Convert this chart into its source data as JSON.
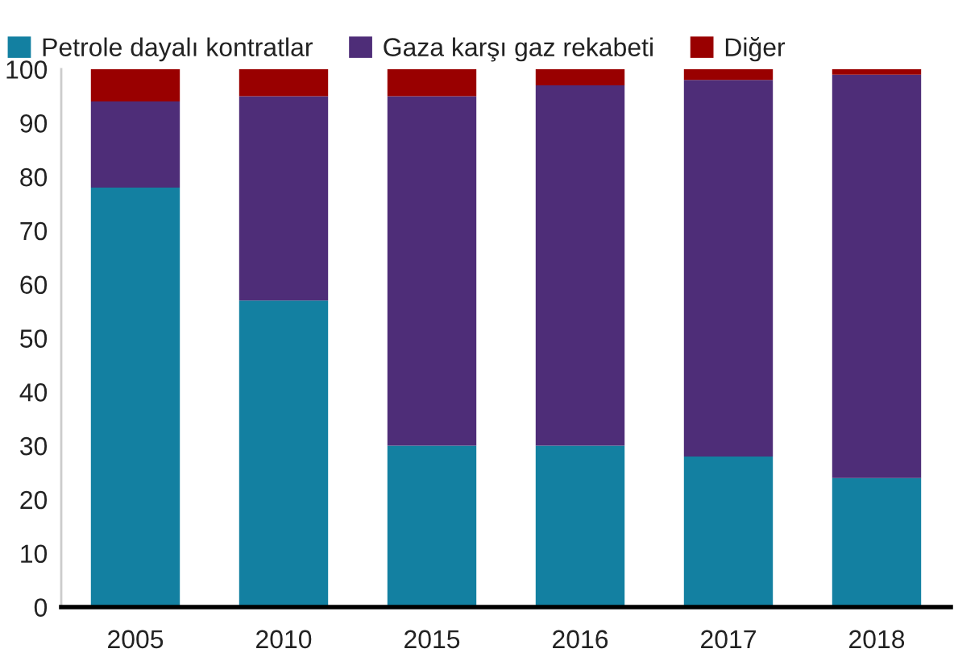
{
  "chart_data": {
    "type": "bar",
    "stacked": true,
    "categories": [
      "2005",
      "2010",
      "2015",
      "2016",
      "2017",
      "2018"
    ],
    "series": [
      {
        "name": "Petrole dayalı kontratlar",
        "color": "#1380a1",
        "values": [
          78,
          57,
          30,
          30,
          28,
          24
        ]
      },
      {
        "name": "Gaza karşı gaz rekabeti",
        "color": "#4e2d78",
        "values": [
          16,
          38,
          65,
          67,
          70,
          75
        ]
      },
      {
        "name": "Diğer",
        "color": "#990000",
        "values": [
          6,
          5,
          5,
          3,
          2,
          1
        ]
      }
    ],
    "ylim": [
      0,
      100
    ],
    "yticks": [
      0,
      10,
      20,
      30,
      40,
      50,
      60,
      70,
      80,
      90,
      100
    ],
    "grid": false,
    "legend": "top left"
  }
}
